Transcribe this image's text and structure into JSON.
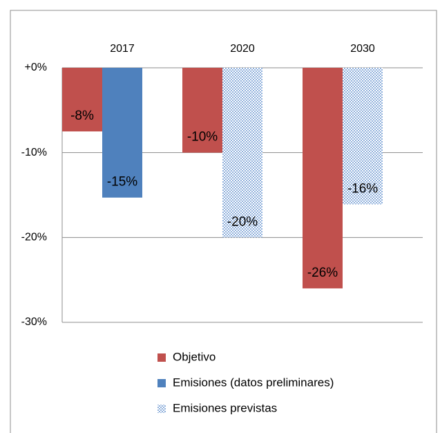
{
  "chart_data": {
    "type": "bar",
    "categories": [
      "2017",
      "2020",
      "2030"
    ],
    "series": [
      {
        "name": "Objetivo",
        "color": "#c0504d",
        "values": [
          -7.5,
          -10,
          -26
        ],
        "value_labels": [
          "-8%",
          "-10%",
          "-26%"
        ]
      },
      {
        "name": "Emisiones (datos preliminares)",
        "color": "#4f81bd",
        "values": [
          -15.3,
          null,
          null
        ],
        "value_labels": [
          "-15%",
          null,
          null
        ]
      },
      {
        "name": "Emisiones previstas",
        "color": "#b8cce4",
        "pattern": "checkered",
        "values": [
          null,
          -20,
          -16.1
        ],
        "value_labels": [
          null,
          "-20%",
          "-16%"
        ]
      }
    ],
    "ylim": [
      -30,
      0
    ],
    "yticks": [
      {
        "value": 0,
        "label": "+0%"
      },
      {
        "value": -10,
        "label": "-10%"
      },
      {
        "value": -20,
        "label": "-20%"
      },
      {
        "value": -30,
        "label": "-30%"
      }
    ],
    "grid": true,
    "legend": "bottom"
  }
}
